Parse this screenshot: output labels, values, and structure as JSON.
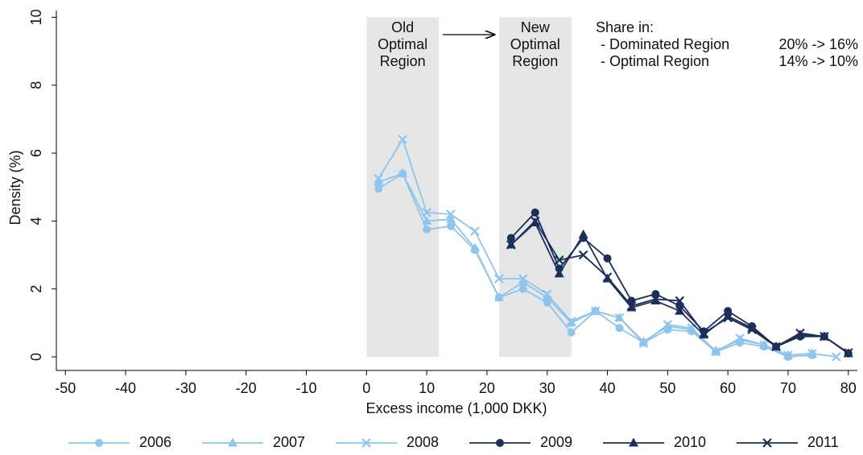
{
  "chart_data": {
    "type": "line",
    "xlabel": "Excess income (1,000 DKK)",
    "ylabel": "Density (%)",
    "xlim": [
      -51.5,
      81.5
    ],
    "ylim": [
      -0.4,
      10.2
    ],
    "xticks": [
      -50,
      -40,
      -30,
      -20,
      -10,
      0,
      10,
      20,
      30,
      40,
      50,
      60,
      70,
      80
    ],
    "yticks": [
      0,
      2,
      4,
      6,
      8,
      10
    ],
    "regions": [
      {
        "label": [
          "Old",
          "Optimal",
          "Region"
        ],
        "x": [
          0,
          12
        ]
      },
      {
        "label": [
          "New",
          "Optimal",
          "Region"
        ],
        "x": [
          22,
          34
        ]
      }
    ],
    "share_note": {
      "title": "Share in:",
      "rows": [
        [
          "- Dominated Region",
          "20% -> 16%"
        ],
        [
          "- Optimal Region",
          "14% -> 10%"
        ]
      ]
    },
    "series": [
      {
        "name": "2006",
        "color": "#8ec5ec",
        "marker": "circle",
        "x": [
          2,
          6,
          10,
          14,
          18,
          22,
          26,
          30,
          34,
          38,
          42,
          46,
          50,
          54,
          58,
          62,
          66,
          70,
          74
        ],
        "values": [
          4.95,
          5.4,
          3.75,
          3.85,
          3.15,
          1.75,
          2.0,
          1.6,
          0.72,
          1.35,
          0.85,
          0.42,
          0.8,
          0.75,
          0.15,
          0.42,
          0.3,
          0.0,
          0.05
        ]
      },
      {
        "name": "2007",
        "color": "#8ec5ec",
        "marker": "triangle",
        "x": [
          2,
          6,
          10,
          14,
          18,
          22,
          26,
          30,
          34,
          38,
          42,
          46,
          50,
          54,
          58,
          62,
          66,
          70,
          74
        ],
        "values": [
          5.15,
          5.4,
          4.0,
          4.05,
          3.2,
          1.75,
          2.2,
          1.75,
          1.0,
          1.35,
          1.15,
          0.45,
          0.9,
          0.8,
          0.18,
          0.5,
          0.35,
          0.05,
          0.1
        ]
      },
      {
        "name": "2008",
        "color": "#8ec5ec",
        "marker": "x",
        "x": [
          2,
          6,
          10,
          14,
          18,
          22,
          26,
          30,
          34,
          38,
          42,
          46,
          50,
          54,
          58,
          62,
          66,
          70,
          74,
          78
        ],
        "values": [
          5.25,
          6.4,
          4.25,
          4.2,
          3.7,
          2.3,
          2.3,
          1.85,
          1.05,
          1.35,
          1.15,
          0.4,
          0.95,
          0.85,
          0.15,
          0.55,
          0.35,
          0.05,
          0.1,
          0.0
        ]
      },
      {
        "name": "2009",
        "color": "#1c2f5a",
        "marker": "circle",
        "x": [
          24,
          28,
          32,
          36,
          40,
          44,
          48,
          52,
          56,
          60,
          64,
          68,
          72,
          76,
          80
        ],
        "values": [
          3.5,
          4.25,
          2.6,
          3.5,
          2.9,
          1.65,
          1.85,
          1.5,
          0.75,
          1.35,
          0.9,
          0.3,
          0.6,
          0.6,
          0.1
        ]
      },
      {
        "name": "2010",
        "color": "#1c2f5a",
        "marker": "triangle",
        "x": [
          24,
          28,
          32,
          36,
          40,
          44,
          48,
          52,
          56,
          60,
          64,
          68,
          72,
          76,
          80
        ],
        "values": [
          3.3,
          3.95,
          2.45,
          3.6,
          2.3,
          1.45,
          1.65,
          1.35,
          0.65,
          1.2,
          0.85,
          0.3,
          0.65,
          0.6,
          0.1
        ]
      },
      {
        "name": "2011",
        "color": "#1c2f5a",
        "marker": "x",
        "x": [
          24,
          28,
          32,
          36,
          40,
          44,
          48,
          52,
          56,
          60,
          64,
          68,
          72,
          76,
          80
        ],
        "values": [
          3.3,
          4.0,
          2.85,
          3.0,
          2.35,
          1.5,
          1.7,
          1.65,
          0.7,
          1.15,
          0.8,
          0.3,
          0.7,
          0.6,
          0.12
        ]
      }
    ]
  }
}
